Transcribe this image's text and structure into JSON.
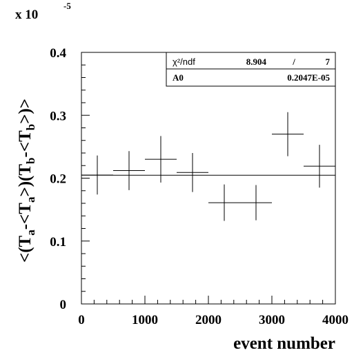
{
  "chart_data": {
    "type": "scatter",
    "title": "",
    "xlabel": "event number",
    "ylabel": "<(T_a-<T_a>)(T_b-<T_b>)>",
    "ylabel_parts": [
      "<(T",
      "a",
      "-<T",
      "a",
      ">)(T",
      "b",
      "-<T",
      "b",
      ">)>"
    ],
    "y_multiplier_label": "x 10",
    "y_multiplier_exponent": "-5",
    "xlim": [
      0,
      4000
    ],
    "ylim": [
      0,
      0.4
    ],
    "x_tick_labels": [
      "0",
      "1000",
      "2000",
      "3000",
      "4000"
    ],
    "x_ticks": [
      0,
      1000,
      2000,
      3000,
      4000
    ],
    "y_tick_labels": [
      "0",
      "0.1",
      "0.2",
      "0.3",
      "0.4"
    ],
    "y_ticks": [
      0,
      0.1,
      0.2,
      0.3,
      0.4
    ],
    "grid": false,
    "series": [
      {
        "x": [
          250,
          750,
          1250,
          1750,
          2250,
          2750,
          3250,
          3750
        ],
        "x_err": [
          250,
          250,
          250,
          250,
          250,
          250,
          250,
          250
        ],
        "y": [
          0.205,
          0.212,
          0.23,
          0.209,
          0.161,
          0.161,
          0.27,
          0.219
        ],
        "y_err": [
          0.031,
          0.031,
          0.037,
          0.031,
          0.029,
          0.028,
          0.035,
          0.034
        ]
      }
    ],
    "fit_line": {
      "y": 0.2047
    },
    "stats_box": {
      "chi2_label": "χ²/ndf",
      "chi2_value": "8.904",
      "separator": "/",
      "ndf": "7",
      "param_label": "A0",
      "param_value": "0.2047E-05"
    }
  }
}
